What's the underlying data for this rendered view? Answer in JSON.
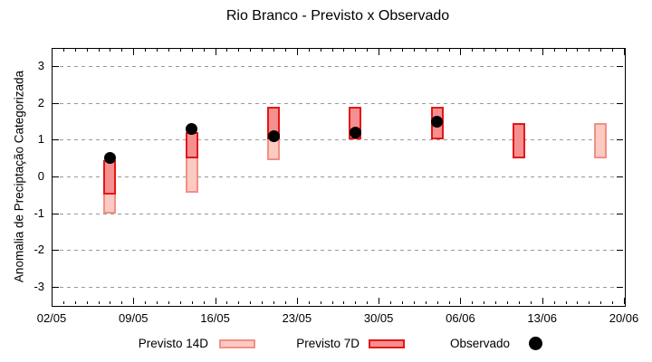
{
  "chart_data": {
    "type": "bar",
    "title": "Rio Branco - Previsto x Observado",
    "ylabel": "Anomalia de Preciptação Categorizada",
    "ylim": [
      -3.5,
      3.5
    ],
    "y_ticks": [
      3,
      2,
      1,
      0,
      -1,
      -2,
      -3
    ],
    "grid": true,
    "legend_position": "bottom",
    "x_axis": {
      "tick_labels": [
        "02/05",
        "09/05",
        "16/05",
        "23/05",
        "30/05",
        "06/06",
        "13/06",
        "20/06"
      ],
      "tick_days": [
        0,
        7,
        14,
        21,
        28,
        35,
        42,
        49
      ],
      "range_days": [
        0,
        49
      ],
      "minor_tick_every_days": 1
    },
    "series": [
      {
        "name": "Previsto 14D",
        "type": "range-bar",
        "fill": "#fbcac3",
        "border": "#f19184",
        "points": [
          {
            "date": "07/05",
            "day": 5,
            "low": -1.0,
            "high": 0.45
          },
          {
            "date": "14/05",
            "day": 12,
            "low": -0.45,
            "high": 1.2
          },
          {
            "date": "21/05",
            "day": 19,
            "low": 0.45,
            "high": 1.9
          },
          {
            "date": "18/06",
            "day": 47,
            "low": 0.5,
            "high": 1.45
          }
        ]
      },
      {
        "name": "Previsto 7D",
        "type": "range-bar",
        "fill": "#f68f8f",
        "border": "#e51717",
        "points": [
          {
            "date": "07/05",
            "day": 5,
            "low": -0.5,
            "high": 0.45
          },
          {
            "date": "14/05",
            "day": 12,
            "low": 0.5,
            "high": 1.2
          },
          {
            "date": "21/05",
            "day": 19,
            "low": 1.0,
            "high": 1.9
          },
          {
            "date": "28/05",
            "day": 26,
            "low": 1.0,
            "high": 1.9
          },
          {
            "date": "04/06",
            "day": 33,
            "low": 1.0,
            "high": 1.9
          },
          {
            "date": "11/06",
            "day": 40,
            "low": 0.5,
            "high": 1.45
          }
        ]
      },
      {
        "name": "Observado",
        "type": "scatter",
        "color": "#000000",
        "points": [
          {
            "date": "07/05",
            "day": 5,
            "value": 0.5
          },
          {
            "date": "14/05",
            "day": 12,
            "value": 1.3
          },
          {
            "date": "21/05",
            "day": 19,
            "value": 1.1
          },
          {
            "date": "28/05",
            "day": 26,
            "value": 1.2
          },
          {
            "date": "04/06",
            "day": 33,
            "value": 1.5
          }
        ]
      }
    ],
    "colors": {
      "background": "#ffffff",
      "axis": "#000000",
      "grid": "#999999",
      "text": "#000000"
    }
  },
  "legend": {
    "items": [
      {
        "label": "Previsto 14D",
        "swatch": "range-bar-14d"
      },
      {
        "label": "Previsto 7D",
        "swatch": "range-bar-7d"
      },
      {
        "label": "Observado",
        "swatch": "dot"
      }
    ]
  }
}
